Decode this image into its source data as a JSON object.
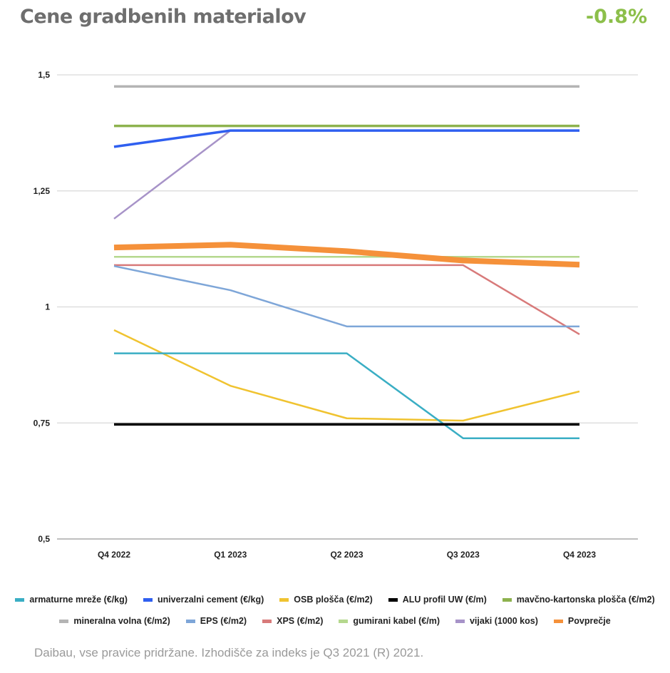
{
  "header": {
    "title": "Cene gradbenih materialov",
    "change": "-0.8%"
  },
  "footer": "Daibau, vse pravice pridržane. Izhodišče za indeks je Q3 2021 (R) 2021.",
  "chart_data": {
    "type": "line",
    "title": "",
    "categories": [
      "Q4 2022",
      "Q1 2023",
      "Q2 2023",
      "Q3 2023",
      "Q4 2023"
    ],
    "ylim": [
      0.5,
      1.5
    ],
    "yticks": [
      0.5,
      0.75,
      1,
      1.25,
      1.5
    ],
    "ytick_labels": [
      "0,5",
      "0,75",
      "1",
      "1,25",
      "1,5"
    ],
    "grid": true,
    "legend_position": "bottom",
    "series": [
      {
        "name": "armaturne mreže (€/kg)",
        "color": "#3aaec4",
        "values": [
          0.9,
          0.9,
          0.9,
          0.717,
          0.717
        ]
      },
      {
        "name": "univerzalni cement (€/kg)",
        "color": "#2f5ff0",
        "values": [
          1.345,
          1.38,
          1.38,
          1.38,
          1.38
        ]
      },
      {
        "name": "OSB plošča (€/m2)",
        "color": "#f0c330",
        "values": [
          0.95,
          0.83,
          0.76,
          0.755,
          0.818
        ]
      },
      {
        "name": "ALU profil UW (€/m)",
        "color": "#000000",
        "values": [
          0.747,
          0.747,
          0.747,
          0.747,
          0.747
        ]
      },
      {
        "name": "mavčno-kartonska plošča (€/m2)",
        "color": "#8db24e",
        "values": [
          1.39,
          1.39,
          1.39,
          1.39,
          1.39
        ]
      },
      {
        "name": "mineralna volna (€/m2)",
        "color": "#b4b4b4",
        "values": [
          1.475,
          1.475,
          1.475,
          1.475,
          1.475
        ]
      },
      {
        "name": "EPS (€/m2)",
        "color": "#7ea6d8",
        "values": [
          1.088,
          1.036,
          0.958,
          0.958,
          0.958
        ]
      },
      {
        "name": "XPS (€/m2)",
        "color": "#d87a7a",
        "values": [
          1.09,
          1.09,
          1.09,
          1.09,
          0.941
        ]
      },
      {
        "name": "gumirani kabel (€/m)",
        "color": "#b5d88e",
        "values": [
          1.108,
          1.108,
          1.108,
          1.108,
          1.108
        ]
      },
      {
        "name": "vijaki (1000 kos)",
        "color": "#a793c8",
        "values": [
          1.19,
          1.38,
          1.38,
          1.38,
          1.38
        ]
      },
      {
        "name": "Povprečje",
        "color": "#f5913a",
        "values": [
          1.128,
          1.134,
          1.12,
          1.1,
          1.091
        ]
      }
    ]
  }
}
